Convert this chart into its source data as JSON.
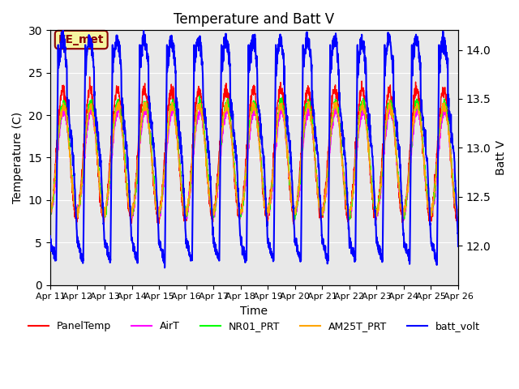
{
  "title": "Temperature and Batt V",
  "xlabel": "Time",
  "ylabel_left": "Temperature (C)",
  "ylabel_right": "Batt V",
  "ylim_left": [
    0,
    30
  ],
  "ylim_right": [
    11.6,
    14.2
  ],
  "xtick_labels": [
    "Apr 11",
    "Apr 12",
    "Apr 13",
    "Apr 14",
    "Apr 15",
    "Apr 16",
    "Apr 17",
    "Apr 18",
    "Apr 19",
    "Apr 20",
    "Apr 21",
    "Apr 22",
    "Apr 23",
    "Apr 24",
    "Apr 25",
    "Apr 26"
  ],
  "annotation_text": "EE_met",
  "annotation_color": "#8B0000",
  "annotation_bg": "#f5f5a0",
  "bg_color": "#e8e8e8",
  "legend_entries": [
    "PanelTemp",
    "AirT",
    "NR01_PRT",
    "AM25T_PRT",
    "batt_volt"
  ],
  "line_colors": [
    "red",
    "magenta",
    "lime",
    "orange",
    "blue"
  ],
  "line_widths": [
    1.0,
    1.0,
    1.0,
    1.0,
    1.5
  ],
  "grid_color": "white",
  "n_days": 15,
  "pts_per_day": 144
}
